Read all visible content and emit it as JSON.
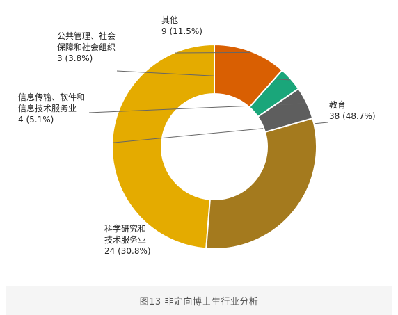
{
  "chart_data": {
    "type": "pie",
    "donut": true,
    "categories": [
      "教育",
      "科学研究和技术服务业",
      "信息传输、软件和信息技术服务业",
      "公共管理、社会保障和社会组织",
      "其他"
    ],
    "values": [
      38,
      24,
      4,
      3,
      9
    ],
    "percents": [
      "48.7%",
      "30.8%",
      "5.1%",
      "3.8%",
      "11.5%"
    ],
    "colors": [
      "#e4ab00",
      "#a47a1e",
      "#5e5e5e",
      "#1aa67a",
      "#d95f02"
    ],
    "labels": [
      {
        "lines": [
          "教育"
        ],
        "value_text": "38 (48.7%)"
      },
      {
        "lines": [
          "科学研究和",
          "技术服务业"
        ],
        "value_text": "24 (30.8%)"
      },
      {
        "lines": [
          "信息传输、软件和",
          "信息技术服务业"
        ],
        "value_text": "4 (5.1%)"
      },
      {
        "lines": [
          "公共管理、社会",
          "保障和社会组织"
        ],
        "value_text": "3 (3.8%)"
      },
      {
        "lines": [
          "其他"
        ],
        "value_text": "9 (11.5%)"
      }
    ]
  },
  "caption": "图13  非定向博士生行业分析"
}
